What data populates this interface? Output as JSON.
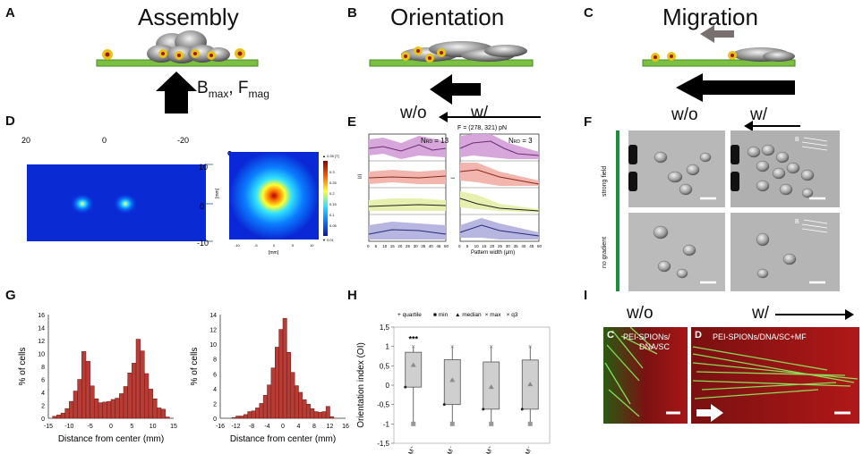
{
  "panels": {
    "A": {
      "label": "A",
      "title": "Assembly",
      "field_text": "B",
      "field_sub": "max",
      "sep": ", ",
      "force_text": "F",
      "force_sub": "mag"
    },
    "B": {
      "label": "B",
      "title": "Orientation",
      "wo": "w/o",
      "w": "w/"
    },
    "C": {
      "label": "C",
      "title": "Migration"
    },
    "D": {
      "label": "D",
      "inset_label": "c",
      "axis_top": [
        "20",
        "0",
        "-20"
      ],
      "axis_right": [
        "10",
        "0",
        "-10"
      ],
      "inset_xlabel": "[mm]",
      "inset_ylabel": "[mm]",
      "inset_xticks": [
        "-10",
        "-5",
        "0",
        "5",
        "10"
      ],
      "colorbar_label": "▲ 0.35 [T]",
      "colorbar_ticks": [
        "0.3",
        "0.25",
        "0.2",
        "0.15",
        "0.1",
        "0.05"
      ],
      "colorbar_min": "▼ 0.01"
    },
    "E": {
      "label": "E",
      "force": "F = (278, 321) pN",
      "nrd_left": "13",
      "nrd_right": "3",
      "nrd_prefix": "N",
      "nrd_sub": "RD",
      "nrd_eq": " = ",
      "ylabel_left": "I/I",
      "ylabel_sub": "max",
      "ylabel_right": "I",
      "xlabel": "Pattern width (μm)",
      "xticks": [
        "0",
        "5",
        "10",
        "15",
        "20",
        "25",
        "30",
        "35",
        "40",
        "45",
        "50"
      ]
    },
    "F": {
      "label": "F",
      "wo": "w/o",
      "w": "w/",
      "side1": "strong field",
      "side2": "no gradient",
      "b_mark": "B"
    },
    "G": {
      "label": "G",
      "ylabel": "% of cells",
      "xlabel": "Distance from center (mm)",
      "left_yticks": [
        "0",
        "2",
        "4",
        "6",
        "8",
        "10",
        "12",
        "14",
        "16"
      ],
      "left_xticks": [
        "-15",
        "-10",
        "-5",
        "0",
        "5",
        "10",
        "15"
      ],
      "right_yticks": [
        "0",
        "2",
        "4",
        "6",
        "8",
        "10",
        "12",
        "14"
      ],
      "right_xticks": [
        "-16",
        "-12",
        "-8",
        "-4",
        "0",
        "4",
        "8",
        "12",
        "16"
      ]
    },
    "H": {
      "label": "H",
      "ylabel": "Orientation index (OI)",
      "stars": "***",
      "legend": [
        "+ quartile",
        "■ min",
        "▲ median",
        "× max",
        "× q3"
      ],
      "yticks": [
        "1,5",
        "1",
        "0,5",
        "0",
        "-0,5",
        "-1",
        "-1,5"
      ],
      "groups": [
        "f-MNP⁺M⁺",
        "f-MNP⁺M⁻",
        "f-MNP⁻M⁺",
        "f-MNP⁻M⁻"
      ]
    },
    "I": {
      "label": "I",
      "wo": "w/o",
      "w": "w/",
      "sub_c": "C",
      "sub_d": "D",
      "left_text": "PEI-SPIONs/",
      "left_text2": "DNA/SC",
      "right_text": "PEI-SPIONs/DNA/SC+MF"
    }
  },
  "chart_data": [
    {
      "type": "bar",
      "title": "",
      "xlabel": "Distance from center (mm)",
      "ylabel": "% of cells",
      "xlim": [
        -15,
        15
      ],
      "ylim": [
        0,
        16
      ],
      "x": [
        -13.5,
        -12.5,
        -11.5,
        -10.5,
        -9.5,
        -8.5,
        -7.5,
        -6.5,
        -5.5,
        -4.5,
        -3.5,
        -2.5,
        -1.5,
        -0.5,
        0.5,
        1.5,
        2.5,
        3.5,
        4.5,
        5.5,
        6.5,
        7.5,
        8.5,
        9.5,
        10.5,
        11.5,
        12.5,
        13.5
      ],
      "values": [
        0.3,
        0.5,
        0.8,
        1.5,
        2.6,
        4.2,
        6.0,
        10.3,
        8.8,
        5.0,
        3.0,
        2.4,
        2.5,
        2.6,
        2.9,
        3.1,
        3.8,
        4.9,
        7.0,
        8.5,
        12.2,
        10.4,
        6.9,
        4.5,
        3.0,
        1.6,
        1.4,
        0.2
      ]
    },
    {
      "type": "bar",
      "title": "",
      "xlabel": "Distance from center (mm)",
      "ylabel": "% of cells",
      "xlim": [
        -16,
        16
      ],
      "ylim": [
        0,
        14
      ],
      "x": [
        -12.5,
        -11.5,
        -10.5,
        -9.5,
        -8.5,
        -7.5,
        -6.5,
        -5.5,
        -4.5,
        -3.5,
        -2.5,
        -1.5,
        -0.5,
        0.5,
        1.5,
        2.5,
        3.5,
        4.5,
        5.5,
        6.5,
        7.5,
        8.5,
        9.5,
        10.5,
        11.5,
        12.5
      ],
      "values": [
        0.1,
        0.3,
        0.3,
        0.5,
        0.9,
        1.0,
        1.4,
        2.0,
        3.1,
        4.5,
        6.8,
        9.6,
        12.0,
        13.5,
        8.9,
        6.2,
        4.4,
        3.5,
        2.5,
        1.9,
        1.3,
        0.9,
        0.8,
        0.9,
        1.6,
        0.2
      ]
    },
    {
      "type": "box",
      "title": "",
      "ylabel": "Orientation index (OI)",
      "ylim": [
        -1.5,
        1.5
      ],
      "categories": [
        "f-MNP⁺M⁺",
        "f-MNP⁺M⁻",
        "f-MNP⁻M⁺",
        "f-MNP⁻M⁻"
      ],
      "min": [
        -1,
        -1,
        -1,
        -1
      ],
      "q1": [
        -0.05,
        -0.5,
        -0.62,
        -0.62
      ],
      "median": [
        0.52,
        0.13,
        -0.05,
        0.02
      ],
      "q3": [
        0.85,
        0.66,
        0.6,
        0.65
      ],
      "max": [
        1,
        1,
        1,
        1
      ],
      "annotation": "***"
    }
  ]
}
